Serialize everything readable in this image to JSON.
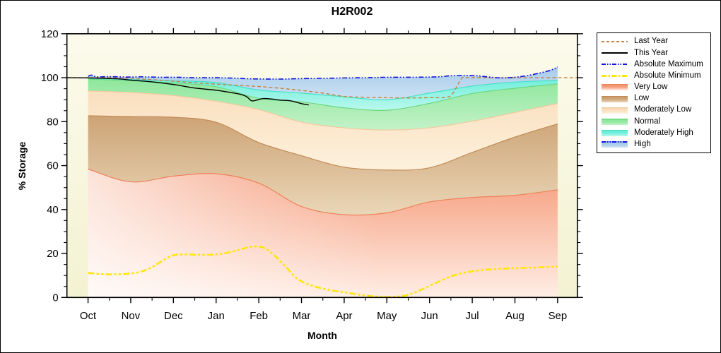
{
  "title": "H2R002",
  "x_axis": {
    "label": "Month"
  },
  "y_axis": {
    "label": "% Storage",
    "min": 0,
    "max": 120,
    "major_step": 20,
    "minor_step": 5,
    "ticks": [
      0,
      20,
      40,
      60,
      80,
      100,
      120
    ]
  },
  "legend": {
    "items": [
      {
        "label": "Last Year",
        "swatch": "line",
        "key": "last_year"
      },
      {
        "label": "This Year",
        "swatch": "line",
        "key": "this_year"
      },
      {
        "label": "Absolute Maximum",
        "swatch": "line",
        "key": "abs_max"
      },
      {
        "label": "Absolute Minimum",
        "swatch": "line",
        "key": "abs_min"
      },
      {
        "label": "Very Low",
        "swatch": "band",
        "key": "very_low"
      },
      {
        "label": "Low",
        "swatch": "band",
        "key": "low"
      },
      {
        "label": "Moderately Low",
        "swatch": "band",
        "key": "mod_low"
      },
      {
        "label": "Normal",
        "swatch": "band",
        "key": "normal"
      },
      {
        "label": "Moderately High",
        "swatch": "band",
        "key": "mod_high"
      },
      {
        "label": "High",
        "swatch": "band",
        "key": "high"
      }
    ]
  },
  "colors": {
    "plot_bg_top": "#fcfbec",
    "plot_bg_bottom": "#f3f2d2",
    "axis": "#000000",
    "last_year": "#c5813f",
    "this_year": "#000000",
    "abs_max": "#1212dd",
    "abs_min": "#ffe60a",
    "bands": {
      "very_low": {
        "top": "#f59b7a",
        "bottom": "#ffeee6",
        "line": "#ee8059"
      },
      "low": {
        "top": "#cda376",
        "bottom": "#ead7b8",
        "line": "#c18c55"
      },
      "mod_low": {
        "top": "#fadfbe",
        "bottom": "#fdf1dd",
        "line": "#f0c9a0"
      },
      "normal": {
        "top": "#8ee79c",
        "bottom": "#c4f2c8",
        "line": "#6bd77f"
      },
      "mod_high": {
        "top": "#6feedb",
        "bottom": "#baf8ed",
        "line": "#45e0c6"
      },
      "high": {
        "top": "#a7cbe9",
        "bottom": "#cde2f4",
        "line": "#7fb2dd"
      }
    }
  },
  "chart_data": {
    "type": "area",
    "title": "H2R002",
    "xlabel": "Month",
    "ylabel": "% Storage",
    "ylim": [
      0,
      120
    ],
    "categories": [
      "Oct",
      "Nov",
      "Dec",
      "Jan",
      "Feb",
      "Mar",
      "Apr",
      "May",
      "Jun",
      "Jul",
      "Aug",
      "Sep"
    ],
    "bands_note": "percentile zone boundaries in % storage, one value per month Oct-Sep; each band spans from boundary above down to its bottom array; very_low extends to 0",
    "bands": [
      {
        "name": "High",
        "key": "high",
        "top": "abs_max_line",
        "bottom": [
          99.8,
          99.2,
          98.6,
          97.8,
          94.4,
          93.0,
          91.3,
          90.0,
          93.0,
          96.2,
          98.0,
          98.8
        ]
      },
      {
        "name": "Moderately High",
        "key": "mod_high",
        "bottom": [
          99.4,
          98.6,
          97.6,
          95.9,
          90.6,
          89.0,
          86.3,
          85.2,
          88.3,
          92.8,
          95.2,
          97.2
        ]
      },
      {
        "name": "Normal",
        "key": "normal",
        "bottom": [
          94.0,
          93.3,
          91.9,
          89.3,
          85.5,
          79.8,
          77.2,
          76.2,
          77.2,
          80.2,
          84.2,
          88.3
        ]
      },
      {
        "name": "Moderately Low",
        "key": "mod_low",
        "bottom": [
          82.7,
          82.3,
          82.0,
          79.7,
          70.5,
          64.5,
          59.3,
          58.0,
          59.0,
          66.0,
          73.0,
          79.0
        ]
      },
      {
        "name": "Low",
        "key": "low",
        "bottom": [
          58.4,
          52.6,
          55.2,
          56.3,
          52.0,
          41.4,
          37.7,
          38.5,
          43.5,
          45.5,
          46.5,
          49.0
        ]
      },
      {
        "name": "Very Low",
        "key": "very_low",
        "bottom": "zero"
      }
    ],
    "lines": {
      "abs_max": {
        "name": "Absolute Maximum",
        "points": [
          [
            0,
            100.6
          ],
          [
            0.08,
            101.2
          ],
          [
            0.2,
            100.4
          ],
          [
            0.5,
            100.5
          ],
          [
            0.9,
            100.3
          ],
          [
            1.3,
            100.4
          ],
          [
            1.7,
            100.2
          ],
          [
            2.1,
            100.2
          ],
          [
            2.5,
            100.0
          ],
          [
            3.0,
            100.0
          ],
          [
            3.4,
            99.8
          ],
          [
            3.8,
            99.5
          ],
          [
            4.2,
            99.4
          ],
          [
            4.6,
            99.4
          ],
          [
            5.0,
            99.6
          ],
          [
            5.5,
            99.7
          ],
          [
            6.0,
            99.9
          ],
          [
            6.5,
            100.0
          ],
          [
            7.0,
            100.2
          ],
          [
            7.5,
            100.2
          ],
          [
            8.0,
            100.3
          ],
          [
            8.3,
            100.5
          ],
          [
            8.5,
            100.9
          ],
          [
            8.8,
            101.0
          ],
          [
            9.1,
            100.9
          ],
          [
            9.4,
            100.3
          ],
          [
            9.7,
            99.9
          ],
          [
            10.0,
            100.2
          ],
          [
            10.3,
            101.0
          ],
          [
            10.6,
            102.2
          ],
          [
            10.85,
            103.5
          ],
          [
            11,
            104.9
          ]
        ]
      },
      "abs_min": {
        "name": "Absolute Minimum",
        "points": [
          [
            0,
            11.2
          ],
          [
            0.25,
            10.7
          ],
          [
            0.5,
            10.5
          ],
          [
            0.75,
            10.6
          ],
          [
            1,
            10.9
          ],
          [
            1.25,
            11.8
          ],
          [
            1.5,
            13.8
          ],
          [
            1.75,
            16.8
          ],
          [
            2,
            19.2
          ],
          [
            2.25,
            19.6
          ],
          [
            2.5,
            19.5
          ],
          [
            2.75,
            19.4
          ],
          [
            3,
            19.6
          ],
          [
            3.25,
            20.3
          ],
          [
            3.5,
            21.5
          ],
          [
            3.75,
            22.8
          ],
          [
            3.95,
            23.2
          ],
          [
            4.15,
            22.3
          ],
          [
            4.4,
            18.5
          ],
          [
            4.65,
            13.5
          ],
          [
            4.9,
            8.5
          ],
          [
            5.15,
            6.0
          ],
          [
            5.4,
            4.5
          ],
          [
            5.7,
            3.2
          ],
          [
            6,
            2.4
          ],
          [
            6.3,
            1.4
          ],
          [
            6.6,
            0.7
          ],
          [
            6.9,
            0.3
          ],
          [
            7.2,
            0.3
          ],
          [
            7.5,
            1.2
          ],
          [
            7.8,
            3.5
          ],
          [
            8.1,
            6.2
          ],
          [
            8.4,
            8.8
          ],
          [
            8.7,
            10.8
          ],
          [
            9,
            11.9
          ],
          [
            9.3,
            12.6
          ],
          [
            9.6,
            13.0
          ],
          [
            10,
            13.3
          ],
          [
            10.4,
            13.6
          ],
          [
            10.8,
            13.9
          ],
          [
            11,
            14.0
          ]
        ]
      },
      "last_year": {
        "name": "Last Year",
        "points": [
          [
            -0.49,
            100
          ],
          [
            0,
            100
          ],
          [
            0.7,
            100
          ],
          [
            1,
            99.7
          ],
          [
            1.5,
            99.1
          ],
          [
            2,
            98.4
          ],
          [
            2.5,
            97.7
          ],
          [
            3,
            97.1
          ],
          [
            3.5,
            96.5
          ],
          [
            4,
            96.0
          ],
          [
            4.5,
            95.2
          ],
          [
            5,
            94.2
          ],
          [
            5.5,
            93.0
          ],
          [
            6,
            91.5
          ],
          [
            6.5,
            91.1
          ],
          [
            7,
            90.9
          ],
          [
            7.5,
            90.8
          ],
          [
            8,
            90.9
          ],
          [
            8.4,
            91.1
          ],
          [
            8.55,
            93.0
          ],
          [
            8.75,
            99.6
          ],
          [
            8.9,
            100
          ],
          [
            9.5,
            100
          ],
          [
            10,
            100
          ],
          [
            10.5,
            100
          ],
          [
            11,
            100
          ],
          [
            11.46,
            100
          ]
        ]
      },
      "this_year": {
        "name": "This Year",
        "points": [
          [
            -0.49,
            100
          ],
          [
            0,
            99.9
          ],
          [
            0.7,
            99.5
          ],
          [
            1,
            98.9
          ],
          [
            1.5,
            98.1
          ],
          [
            2,
            96.9
          ],
          [
            2.5,
            95.3
          ],
          [
            3,
            94.3
          ],
          [
            3.3,
            93.4
          ],
          [
            3.6,
            92.3
          ],
          [
            3.72,
            91.3
          ],
          [
            3.83,
            89.5
          ],
          [
            3.95,
            89.8
          ],
          [
            4.1,
            90.5
          ],
          [
            4.3,
            90.3
          ],
          [
            4.5,
            89.8
          ],
          [
            4.7,
            89.6
          ],
          [
            4.85,
            89.0
          ],
          [
            5,
            88.2
          ],
          [
            5.08,
            87.9
          ],
          [
            5.17,
            87.6
          ]
        ]
      }
    }
  }
}
